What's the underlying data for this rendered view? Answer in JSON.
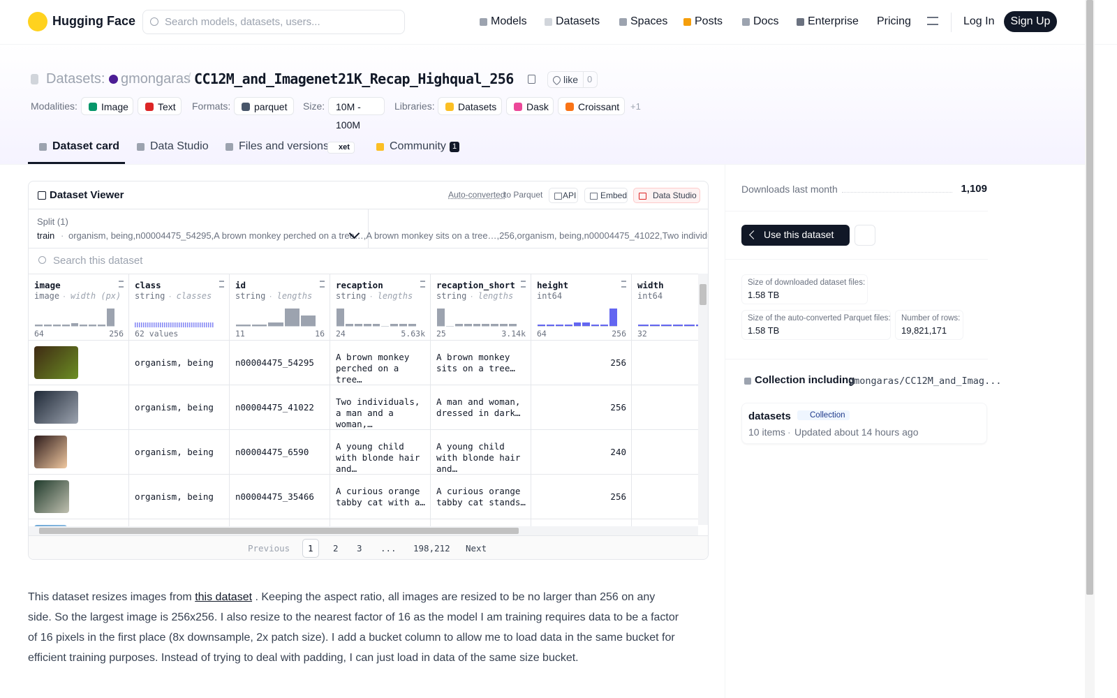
{
  "nav": {
    "brand": "Hugging Face",
    "search_placeholder": "Search models, datasets, users...",
    "links": [
      "Models",
      "Datasets",
      "Spaces",
      "Posts",
      "Docs",
      "Enterprise",
      "Pricing"
    ],
    "login": "Log In",
    "signup": "Sign Up"
  },
  "header": {
    "section": "Datasets:",
    "owner": "gmongaras",
    "separator": "/",
    "name": "CC12M_and_Imagenet21K_Recap_Highqual_256",
    "like": "like",
    "like_count": "0"
  },
  "tags": {
    "modalities_label": "Modalities:",
    "modalities": [
      "Image",
      "Text"
    ],
    "formats_label": "Formats:",
    "formats": [
      "parquet"
    ],
    "size_label": "Size:",
    "size": "10M - 100M",
    "libraries_label": "Libraries:",
    "libraries": [
      "Datasets",
      "Dask",
      "Croissant"
    ],
    "more": "+1"
  },
  "tabs": {
    "items": [
      "Dataset card",
      "Data Studio",
      "Files and versions",
      "Community"
    ],
    "xet": "xet",
    "community_count": "1"
  },
  "viewer": {
    "title": "Dataset Viewer",
    "auto": "Auto-converted",
    "to_parquet": "to Parquet",
    "buttons": [
      "API",
      "Embed",
      "Data Studio"
    ],
    "split_label": "Split (1)",
    "split": "train",
    "split_sep": "·",
    "rows": [
      [
        "organism, being",
        "n00004475_54295",
        "A brown monkey perched on a tree…",
        "A brown monkey sits on a tree…",
        "256"
      ],
      [
        "organism, being",
        "n00004475_41022",
        "Two individuals, a man and a woman,…",
        "A man and woman, dressed in dark…",
        "256"
      ],
      [
        "organism, being",
        "n00004475_6590",
        "A young child with blonde hair and…",
        "A young child with blonde hair and…",
        "240"
      ],
      [
        "organism, being",
        "n00004475_35466",
        "A curious orange tabby cat with a…",
        "A curious orange tabby cat stands…",
        "256"
      ]
    ],
    "search": "Search this dataset",
    "columns": [
      {
        "name": "image",
        "type": "image",
        "stat": "width (px)",
        "min": "64",
        "max": "256",
        "histogram": [
          1,
          1,
          1,
          1,
          2,
          1,
          1,
          1,
          12
        ]
      },
      {
        "name": "class",
        "type": "string",
        "stat": "classes",
        "summary": "62 values"
      },
      {
        "name": "id",
        "type": "string",
        "stat": "lengths",
        "min": "11",
        "max": "16",
        "histogram": [
          1,
          1,
          2,
          10,
          6
        ]
      },
      {
        "name": "recaption",
        "type": "string",
        "stat": "lengths",
        "min": "24",
        "max": "5.63k",
        "histogram": [
          9,
          1,
          1,
          1,
          1,
          0,
          1,
          1,
          1
        ]
      },
      {
        "name": "recaption_short",
        "type": "string",
        "stat": "lengths",
        "min": "25",
        "max": "3.14k",
        "histogram": [
          9,
          0,
          1,
          1,
          1,
          1,
          1,
          1,
          1
        ]
      },
      {
        "name": "height",
        "type": "int64",
        "min": "64",
        "max": "256",
        "histogram": [
          1,
          1,
          1,
          1,
          2,
          2,
          1,
          1,
          11
        ]
      },
      {
        "name": "width",
        "type": "int64",
        "min": "32",
        "histogram": [
          1,
          1,
          1,
          1,
          1,
          1,
          11
        ]
      }
    ],
    "pagination": {
      "previous": "Previous",
      "pages": [
        "1",
        "2",
        "3",
        "...",
        "198,212"
      ],
      "next": "Next"
    }
  },
  "description": {
    "before": "This dataset resizes images from",
    "link": "this dataset",
    "after": ". Keeping the aspect ratio, all images are resized to be no larger than 256 on any side. So the largest image is 256x256. I also resize to the nearest factor of 16 as the model I am training requires data to be a factor of 16 pixels in the first place (8x downsample, 2x patch size). I add a bucket column to allow me to load data in the same bucket for efficient training purposes. Instead of trying to deal with padding, I can just load in data of the same size bucket."
  },
  "sidebar": {
    "downloads_label": "Downloads last month",
    "downloads": "1,109",
    "use_button": "Use this dataset",
    "size_files_label": "Size of downloaded dataset files:",
    "size_files": "1.58 TB",
    "size_parquet_label": "Size of the auto-converted Parquet files:",
    "size_parquet": "1.58 TB",
    "rows_label": "Number of rows:",
    "rows": "19,821,171",
    "collection_label": "Collection including",
    "collection_path": "gmongaras/CC12M_and_Imag...",
    "collection_name": "datasets",
    "collection_badge": "Collection",
    "collection_items": "10 items",
    "collection_sep": "·",
    "collection_updated": "Updated about 14 hours ago"
  }
}
